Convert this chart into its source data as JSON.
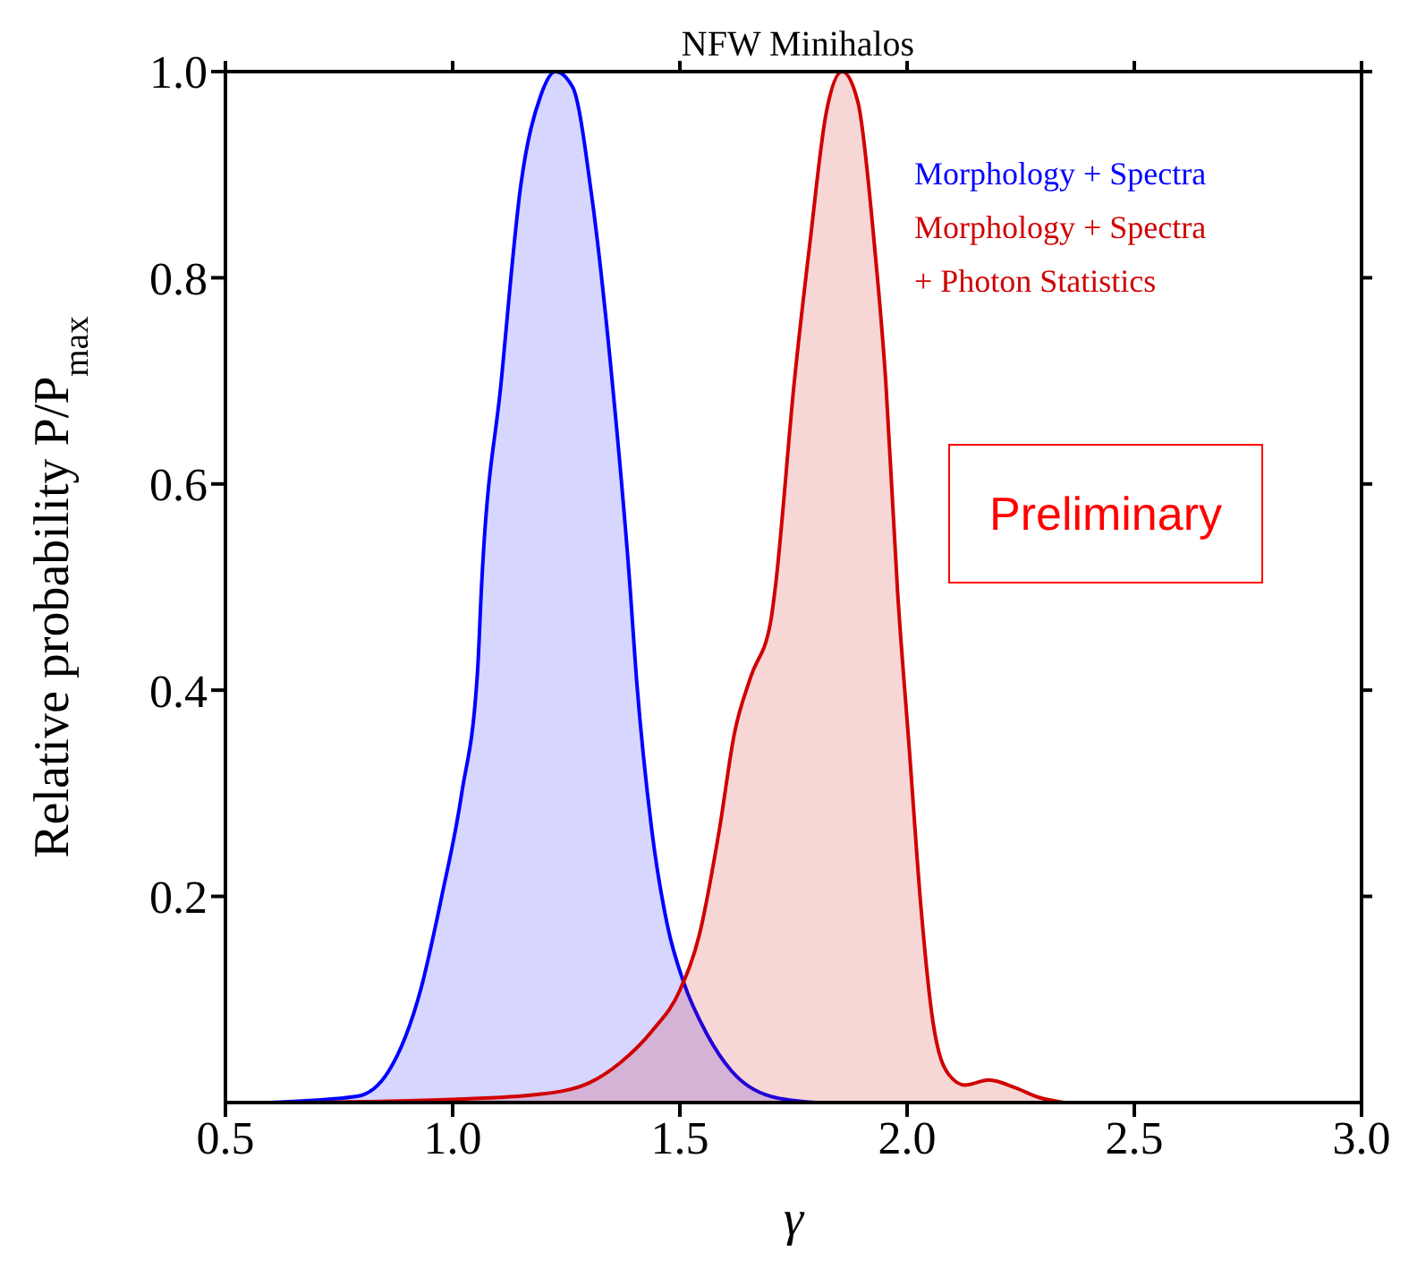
{
  "chart_data": {
    "type": "area",
    "title": "NFW Minihalos",
    "xlabel": "γ",
    "ylabel": "Relative probability P/P$_{max}$",
    "xlim": [
      0.5,
      3.0
    ],
    "xticks": [
      0.5,
      {
        "value": 1,
        "label": "1.0"
      },
      1.5,
      {
        "value": 2,
        "label": "2.0"
      },
      2.5,
      {
        "value": 3,
        "label": "3.0"
      }
    ],
    "ylim": [
      0,
      1.0
    ],
    "yticks": [
      0.2,
      0.4,
      0.6,
      0.8,
      {
        "value": 1,
        "label": "1.0"
      }
    ],
    "legend": "top right",
    "marker": "none",
    "line_style": "solid",
    "annotations": [
      "Preliminary"
    ],
    "series": [
      {
        "name": "Morphology + Spectra",
        "color": "#0000ff",
        "x": [
          0.6,
          0.79,
          0.86,
          0.93,
          0.976,
          1.02,
          1.055,
          1.063,
          1.107,
          1.15,
          1.194,
          1.226,
          1.264,
          1.307,
          1.351,
          1.391,
          1.403,
          1.438,
          1.473,
          1.508,
          1.56,
          1.613,
          1.7,
          1.8
        ],
        "values": [
          0,
          0.006,
          0.031,
          0.11,
          0.2,
          0.3,
          0.42,
          0.496,
          0.7,
          0.89,
          0.977,
          1.0,
          0.985,
          0.876,
          0.7,
          0.496,
          0.42,
          0.265,
          0.171,
          0.117,
          0.066,
          0.031,
          0.006,
          0
        ]
      },
      {
        "name": "Morphology + Spectra + Photon Statistics",
        "color": "#d00000",
        "x": [
          0.67,
          1.0,
          1.19,
          1.3,
          1.37,
          1.44,
          1.5,
          1.543,
          1.587,
          1.62,
          1.656,
          1.7,
          1.709,
          1.752,
          1.787,
          1.822,
          1.857,
          1.892,
          1.927,
          1.953,
          1.979,
          2.005,
          2.031,
          2.057,
          2.092,
          2.127,
          2.18,
          2.24,
          2.29,
          2.345
        ],
        "values": [
          0,
          0.003,
          0.008,
          0.019,
          0.039,
          0.07,
          0.109,
          0.163,
          0.265,
          0.358,
          0.413,
          0.467,
          0.496,
          0.7,
          0.837,
          0.96,
          1.0,
          0.97,
          0.837,
          0.7,
          0.496,
          0.342,
          0.187,
          0.078,
          0.027,
          0.017,
          0.022,
          0.014,
          0.005,
          0
        ]
      }
    ]
  }
}
